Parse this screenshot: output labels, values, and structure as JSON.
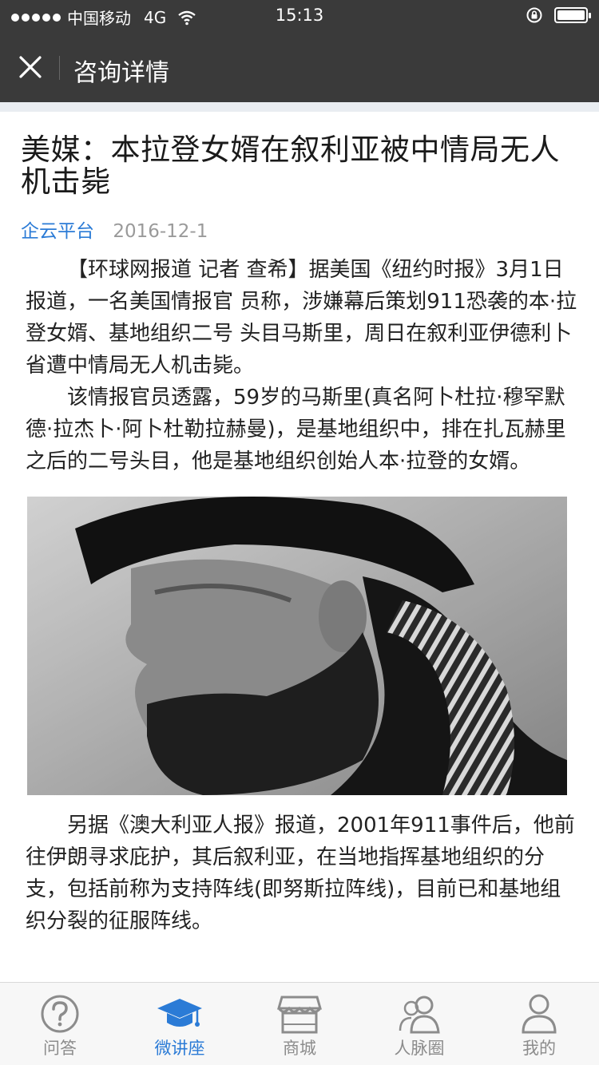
{
  "status_bar": {
    "carrier": "中国移动",
    "network": "4G",
    "time": "15:13",
    "battery_level": 1.0
  },
  "nav": {
    "title": "咨询详情",
    "close_icon": "close-icon"
  },
  "article": {
    "headline": "美媒：本拉登女婿在叙利亚被中情局无人机击毙",
    "source": "企云平台",
    "date": "2016-12-1",
    "paragraphs": [
      "【环球网报道 记者 查希】据美国《纽约时报》3月1日报道，一名美国情报官 员称，涉嫌幕后策划911恐袭的本·拉登女婿、基地组织二号 头目马斯里，周日在叙利亚伊德利卜省遭中情局无人机击毙。",
      "该情报官员透露，59岁的马斯里(真名阿卜杜拉·穆罕默德·拉杰卜·阿卜杜勒拉赫曼)，是基地组织中，排在扎瓦赫里之后的二号头目，他是基地组织创始人本·拉登的女婿。",
      "另据《澳大利亚人报》报道，2001年911事件后，他前往伊朗寻求庇护，其后叙利亚，在当地指挥基地组织的分支，包括前称为支持阵线(即努斯拉阵线)，目前已和基地组织分裂的征服阵线。"
    ]
  },
  "tabs": [
    {
      "label": "问答",
      "icon": "question-icon",
      "active": false
    },
    {
      "label": "微讲座",
      "icon": "graduation-cap-icon",
      "active": true
    },
    {
      "label": "商城",
      "icon": "store-icon",
      "active": false
    },
    {
      "label": "人脉圈",
      "icon": "contacts-icon",
      "active": false
    },
    {
      "label": "我的",
      "icon": "user-icon",
      "active": false
    }
  ],
  "colors": {
    "header_bg": "#3a3a3a",
    "accent": "#2b7bd6",
    "tab_inactive": "#8c8c8c"
  }
}
